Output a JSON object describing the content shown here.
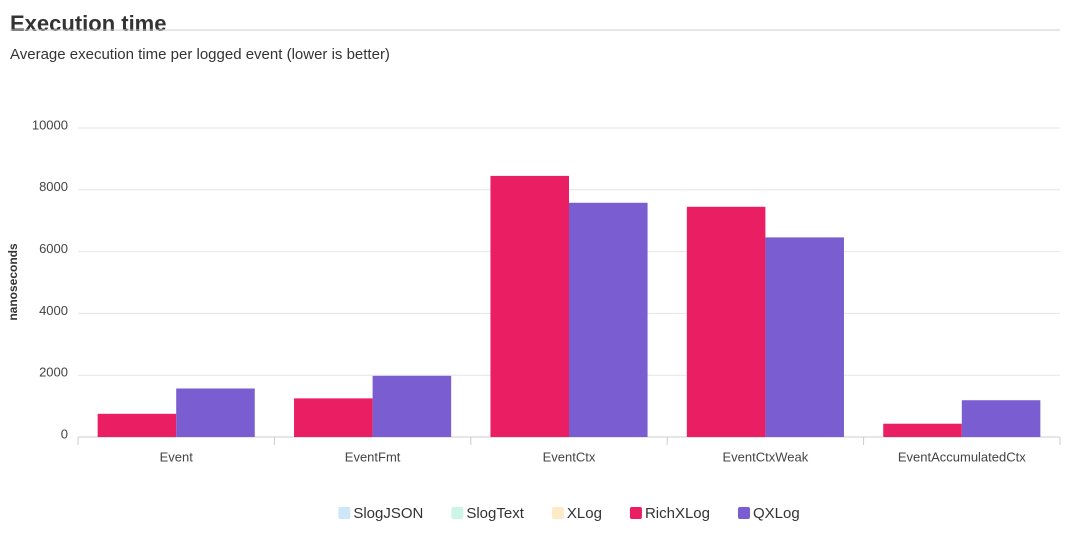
{
  "chart_data": {
    "type": "bar",
    "title": "Execution time",
    "subtitle": "Average execution time per logged event (lower is better)",
    "y_label": "nanoseconds",
    "categories": [
      "Event",
      "EventFmt",
      "EventCtx",
      "EventCtxWeak",
      "EventAccumulatedCtx"
    ],
    "series": [
      {
        "name": "SlogJSON",
        "color": "#cfe6f8",
        "hidden": true,
        "values": [
          null,
          null,
          null,
          null,
          null
        ]
      },
      {
        "name": "SlogText",
        "color": "#cdf5e7",
        "hidden": true,
        "values": [
          null,
          null,
          null,
          null,
          null
        ]
      },
      {
        "name": "XLog",
        "color": "#fdebc8",
        "hidden": true,
        "values": [
          null,
          null,
          null,
          null,
          null
        ]
      },
      {
        "name": "RichXLog",
        "color": "#e91e63",
        "values": [
          750,
          1250,
          8450,
          7450,
          430
        ]
      },
      {
        "name": "QXLog",
        "color": "#7a5dd1",
        "values": [
          1570,
          1980,
          7580,
          6460,
          1190
        ]
      }
    ],
    "ylim": [
      0,
      10000
    ],
    "yticks": [
      0,
      2000,
      4000,
      6000,
      8000,
      10000
    ],
    "grid": true,
    "legend": "bottom"
  }
}
